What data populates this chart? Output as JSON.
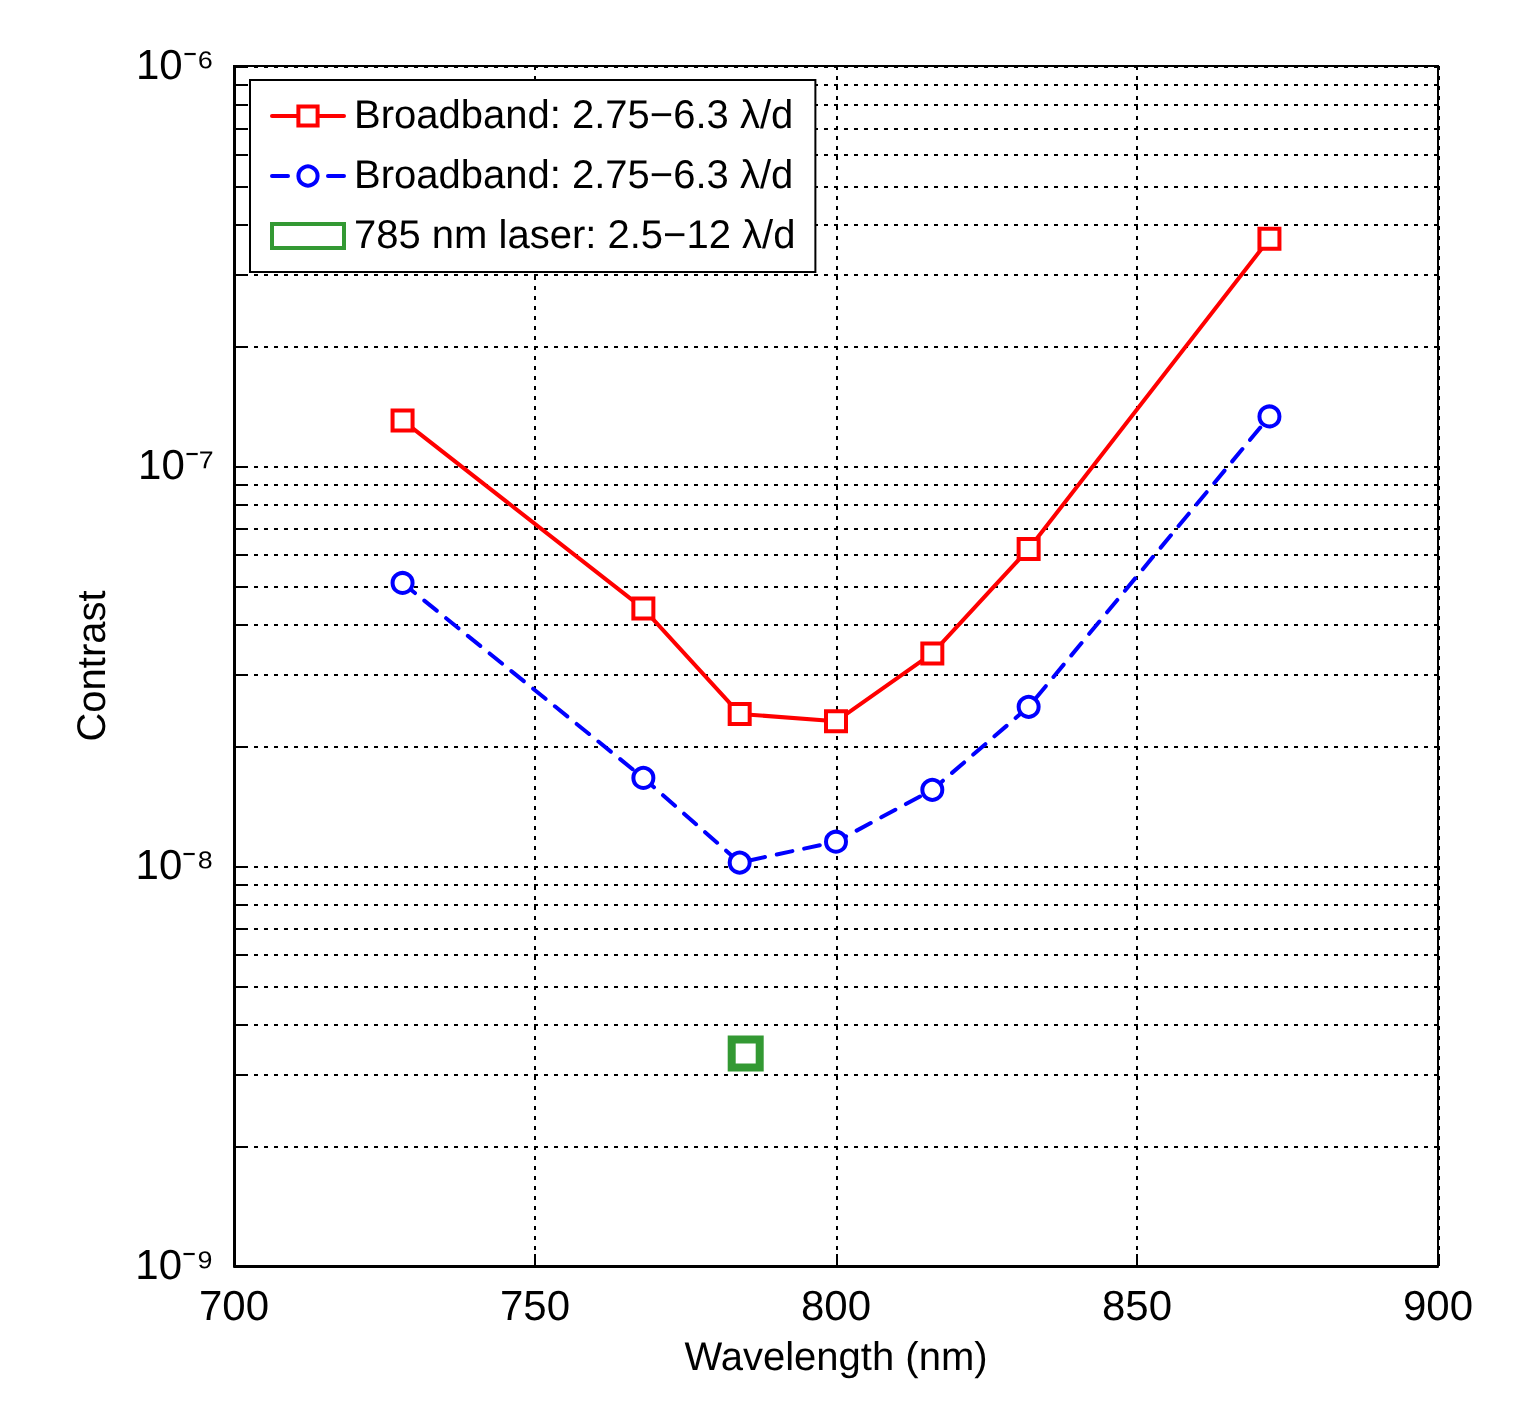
{
  "chart_data": {
    "type": "line",
    "xlabel": "Wavelength (nm)",
    "ylabel": "Contrast",
    "log": "y",
    "grid": true,
    "legend": "top left",
    "xlim": [
      700,
      900
    ],
    "xticks": [
      700,
      750,
      800,
      850,
      900
    ],
    "ylim": [
      1e-09,
      1e-06
    ],
    "yticks": [
      {
        "value": 1e-09,
        "label": "10⁻⁹"
      },
      {
        "value": 2e-09,
        "label": null
      },
      {
        "value": 3e-09,
        "label": null
      },
      {
        "value": 4e-09,
        "label": null
      },
      {
        "value": 5e-09,
        "label": null
      },
      {
        "value": 6e-09,
        "label": null
      },
      {
        "value": 7e-09,
        "label": null
      },
      {
        "value": 8e-09,
        "label": null
      },
      {
        "value": 9e-09,
        "label": null
      },
      {
        "value": 1e-08,
        "label": "10⁻⁸"
      },
      {
        "value": 2e-08,
        "label": null
      },
      {
        "value": 3e-08,
        "label": null
      },
      {
        "value": 4e-08,
        "label": null
      },
      {
        "value": 5e-08,
        "label": null
      },
      {
        "value": 6e-08,
        "label": null
      },
      {
        "value": 7e-08,
        "label": null
      },
      {
        "value": 8e-08,
        "label": null
      },
      {
        "value": 9e-08,
        "label": null
      },
      {
        "value": 1e-07,
        "label": "10⁻⁷"
      },
      {
        "value": 2e-07,
        "label": null
      },
      {
        "value": 3e-07,
        "label": null
      },
      {
        "value": 4e-07,
        "label": null
      },
      {
        "value": 5e-07,
        "label": null
      },
      {
        "value": 6e-07,
        "label": null
      },
      {
        "value": 7e-07,
        "label": null
      },
      {
        "value": 8e-07,
        "label": null
      },
      {
        "value": 9e-07,
        "label": null
      },
      {
        "value": 1e-06,
        "label": "10⁻⁶"
      }
    ],
    "series": [
      {
        "name": "Broadband: 2.75−6.3 λ/d",
        "color": "#ff0000",
        "marker": "square",
        "line_style": "solid",
        "x": [
          728,
          768,
          784,
          800,
          816,
          832,
          872
        ],
        "values": [
          1.3e-07,
          4.4e-08,
          2.4e-08,
          2.3e-08,
          3.4e-08,
          6.2e-08,
          3.7e-07
        ]
      },
      {
        "name": "Broadband: 2.75−6.3 λ/d",
        "color": "#0000ff",
        "marker": "circle",
        "line_style": "dashed",
        "x": [
          728,
          768,
          784,
          800,
          816,
          832,
          872
        ],
        "values": [
          5.1e-08,
          1.66e-08,
          1.02e-08,
          1.15e-08,
          1.55e-08,
          2.5e-08,
          1.33e-07
        ]
      },
      {
        "name": "785 nm laser: 2.5−12 λ/d",
        "type": "scatter",
        "color": "#008000",
        "marker": "square",
        "x": [
          785
        ],
        "values": [
          3.4e-09
        ]
      }
    ]
  }
}
